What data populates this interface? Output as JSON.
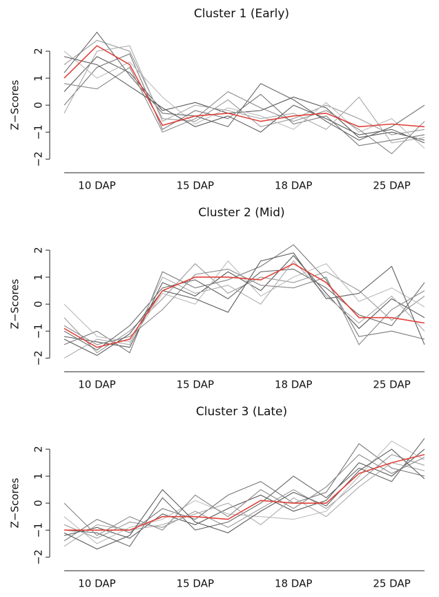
{
  "chart_data": [
    {
      "type": "line",
      "title": "Cluster 1 (Early)",
      "ylabel": "Z−Scores",
      "categories": [
        null,
        "10 DAP",
        null,
        null,
        "15 DAP",
        null,
        null,
        "18 DAP",
        null,
        null,
        "25 DAP",
        null
      ],
      "ylim": [
        -2.3,
        3.0
      ],
      "yticks": [
        {
          "value": -2,
          "label": "−2"
        },
        {
          "value": -1,
          "label": "−1"
        },
        0,
        1,
        2
      ],
      "series": [
        {
          "color": "#555555",
          "values": [
            0.5,
            1.8,
            1.2,
            -0.2,
            0.1,
            -0.3,
            -0.2,
            0.3,
            -0.1,
            -1.2,
            -1.0,
            -1.3
          ]
        },
        {
          "color": "#999999",
          "values": [
            1.5,
            2.4,
            2.0,
            -0.5,
            -0.6,
            0.2,
            -0.8,
            -0.5,
            0.0,
            -0.5,
            -1.1,
            -0.9
          ]
        },
        {
          "color": "#777777",
          "values": [
            0.0,
            1.4,
            1.9,
            -0.9,
            -0.2,
            -0.5,
            0.4,
            -0.7,
            -0.4,
            -1.5,
            -1.3,
            -1.1
          ]
        },
        {
          "color": "#bbbbbb",
          "values": [
            2.0,
            1.0,
            1.6,
            0.3,
            -0.7,
            -0.1,
            -0.4,
            -0.9,
            0.1,
            -1.0,
            -0.5,
            -1.6
          ]
        },
        {
          "color": "#666666",
          "values": [
            1.2,
            2.7,
            1.1,
            -0.3,
            -0.4,
            -0.8,
            0.8,
            0.2,
            -0.6,
            -1.3,
            -0.8,
            0.0
          ]
        },
        {
          "color": "#aaaaaa",
          "values": [
            -0.3,
            2.0,
            2.2,
            -0.6,
            0.0,
            -0.2,
            -0.5,
            -0.3,
            -0.9,
            0.3,
            -1.4,
            -1.2
          ]
        },
        {
          "color": "#888888",
          "values": [
            0.8,
            0.6,
            1.4,
            -1.0,
            -0.5,
            0.5,
            -0.1,
            -0.6,
            -0.2,
            -0.9,
            -1.8,
            -0.6
          ]
        },
        {
          "color": "#5a5a5a",
          "values": [
            1.8,
            1.5,
            0.7,
            -0.1,
            -0.8,
            -0.4,
            -1.0,
            0.0,
            -0.5,
            -1.1,
            -0.9,
            -1.4
          ]
        },
        {
          "color": "#e0403a",
          "values": [
            1.0,
            2.2,
            1.5,
            -0.75,
            -0.4,
            -0.3,
            -0.6,
            -0.4,
            -0.3,
            -0.8,
            -0.7,
            -0.8
          ]
        }
      ]
    },
    {
      "type": "line",
      "title": "Cluster 2 (Mid)",
      "ylabel": "Z−Scores",
      "categories": [
        null,
        "10 DAP",
        null,
        null,
        "15 DAP",
        null,
        null,
        "18 DAP",
        null,
        null,
        "25 DAP",
        null
      ],
      "ylim": [
        -2.3,
        3.0
      ],
      "yticks": [
        {
          "value": -2,
          "label": "−2"
        },
        {
          "value": -1,
          "label": "−1"
        },
        0,
        1,
        2
      ],
      "series": [
        {
          "color": "#555555",
          "values": [
            -1.2,
            -1.4,
            -1.6,
            0.8,
            0.3,
            1.2,
            0.5,
            1.8,
            0.4,
            -0.9,
            0.2,
            -0.5
          ]
        },
        {
          "color": "#999999",
          "values": [
            -0.5,
            -1.8,
            -1.0,
            0.2,
            1.5,
            0.4,
            1.0,
            0.8,
            1.2,
            0.5,
            -0.6,
            0.3
          ]
        },
        {
          "color": "#777777",
          "values": [
            -1.5,
            -1.0,
            -1.8,
            1.2,
            0.6,
            0.9,
            1.4,
            2.2,
            0.9,
            -1.2,
            -1.0,
            -1.3
          ]
        },
        {
          "color": "#bbbbbb",
          "values": [
            0.0,
            -1.2,
            -1.4,
            0.4,
            0.0,
            1.6,
            0.3,
            1.0,
            1.5,
            0.1,
            0.6,
            -0.1
          ]
        },
        {
          "color": "#666666",
          "values": [
            -1.0,
            -1.7,
            -0.8,
            0.6,
            0.9,
            0.2,
            1.2,
            1.3,
            0.6,
            -0.4,
            -0.8,
            0.8
          ]
        },
        {
          "color": "#aaaaaa",
          "values": [
            -2.0,
            -1.3,
            -1.5,
            1.0,
            0.4,
            0.7,
            0.0,
            1.6,
            0.3,
            -0.7,
            0.3,
            -1.0
          ]
        },
        {
          "color": "#888888",
          "values": [
            -0.8,
            -1.5,
            -1.2,
            -0.2,
            1.1,
            1.3,
            0.7,
            0.6,
            1.0,
            -1.5,
            -0.2,
            0.5
          ]
        },
        {
          "color": "#5a5a5a",
          "values": [
            -1.3,
            -1.9,
            -1.1,
            0.5,
            0.2,
            -0.3,
            1.6,
            1.9,
            0.2,
            0.4,
            1.4,
            -1.5
          ]
        },
        {
          "color": "#e0403a",
          "values": [
            -0.9,
            -1.6,
            -1.3,
            0.5,
            1.0,
            1.0,
            0.9,
            1.5,
            0.8,
            -0.5,
            -0.5,
            -0.7
          ]
        }
      ]
    },
    {
      "type": "line",
      "title": "Cluster 3 (Late)",
      "ylabel": "Z−Scores",
      "categories": [
        null,
        "10 DAP",
        null,
        null,
        "15 DAP",
        null,
        null,
        "18 DAP",
        null,
        null,
        "25 DAP",
        null
      ],
      "ylim": [
        -2.3,
        3.0
      ],
      "yticks": [
        {
          "value": -2,
          "label": "−2"
        },
        {
          "value": -1,
          "label": "−1"
        },
        0,
        1,
        2
      ],
      "series": [
        {
          "color": "#555555",
          "values": [
            -1.2,
            -0.9,
            -1.3,
            -0.4,
            -0.8,
            -0.2,
            0.3,
            -0.3,
            0.1,
            1.5,
            1.0,
            2.0
          ]
        },
        {
          "color": "#999999",
          "values": [
            -0.8,
            -1.3,
            -0.7,
            -0.9,
            -0.3,
            -0.9,
            -0.2,
            0.5,
            -0.2,
            0.8,
            1.8,
            1.4
          ]
        },
        {
          "color": "#777777",
          "values": [
            -1.4,
            -0.6,
            -1.1,
            -0.2,
            -0.6,
            0.3,
            0.8,
            0.0,
            0.4,
            2.2,
            1.3,
            1.0
          ]
        },
        {
          "color": "#bbbbbb",
          "values": [
            -0.5,
            -1.5,
            -0.9,
            -0.6,
            0.1,
            -0.4,
            -0.5,
            -0.6,
            -0.3,
            1.0,
            2.3,
            1.6
          ]
        },
        {
          "color": "#666666",
          "values": [
            -1.0,
            -1.1,
            -1.6,
            0.2,
            -1.0,
            -0.7,
            0.0,
            1.0,
            0.2,
            1.3,
            0.8,
            2.4
          ]
        },
        {
          "color": "#aaaaaa",
          "values": [
            -1.6,
            -0.8,
            -1.0,
            -0.8,
            -0.4,
            0.0,
            -0.8,
            0.2,
            -0.5,
            0.6,
            1.5,
            1.2
          ]
        },
        {
          "color": "#888888",
          "values": [
            0.0,
            -1.2,
            -0.5,
            -1.0,
            0.3,
            -0.5,
            0.5,
            -0.2,
            0.6,
            1.8,
            1.1,
            1.7
          ]
        },
        {
          "color": "#5a5a5a",
          "values": [
            -1.1,
            -1.7,
            -1.2,
            0.5,
            -0.7,
            -1.1,
            -0.3,
            0.4,
            -0.1,
            1.2,
            2.0,
            0.9
          ]
        },
        {
          "color": "#e0403a",
          "values": [
            -1.0,
            -1.0,
            -1.0,
            -0.5,
            -0.5,
            -0.6,
            0.1,
            0.0,
            0.0,
            1.1,
            1.5,
            1.8
          ]
        }
      ]
    }
  ]
}
